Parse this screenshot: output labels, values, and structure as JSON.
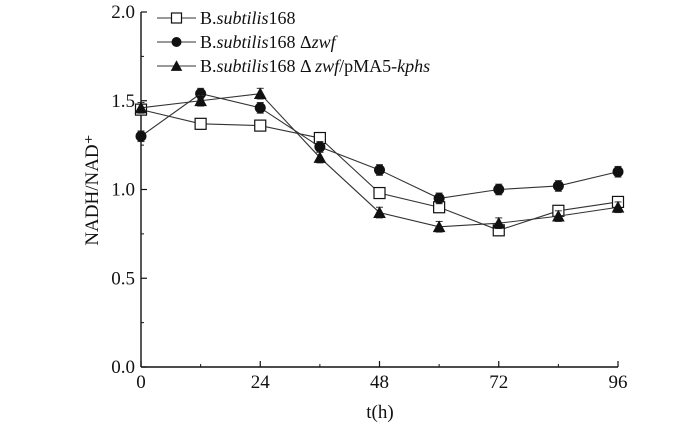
{
  "chart_data": {
    "type": "line",
    "xlabel": "t(h)",
    "ylabel": "NADH/NAD⁺",
    "xlim": [
      0,
      96
    ],
    "ylim": [
      0,
      2.0
    ],
    "x_ticks": [
      "0",
      "24",
      "48",
      "72",
      "96"
    ],
    "y_ticks": [
      "0.0",
      "0.5",
      "1.0",
      "1.5",
      "2.0"
    ],
    "grid": false,
    "legend_position": "top-left",
    "x": [
      0,
      12,
      24,
      36,
      48,
      60,
      72,
      84,
      96
    ],
    "series": [
      {
        "name": "B.subtilis168",
        "name_parts": [
          {
            "t": "B."
          },
          {
            "t": "subtilis",
            "i": true
          },
          {
            "t": "168"
          }
        ],
        "marker": "open-square",
        "values": [
          1.45,
          1.37,
          1.36,
          1.29,
          0.98,
          0.9,
          0.77,
          0.88,
          0.93
        ],
        "errors": [
          0.03,
          0.03,
          0.03,
          0.03,
          0.03,
          0.03,
          0.03,
          0.03,
          0.03
        ]
      },
      {
        "name": "B.subtilis168 Δzwf",
        "name_parts": [
          {
            "t": "B."
          },
          {
            "t": "subtilis",
            "i": true
          },
          {
            "t": "168  Δ"
          },
          {
            "t": "zwf",
            "i": true
          }
        ],
        "marker": "filled-circle",
        "values": [
          1.3,
          1.54,
          1.46,
          1.24,
          1.11,
          0.95,
          1.0,
          1.02,
          1.1
        ],
        "errors": [
          0.03,
          0.03,
          0.03,
          0.03,
          0.03,
          0.03,
          0.03,
          0.03,
          0.03
        ]
      },
      {
        "name": "B.subtilis168 Δzwf/pMA5-kphs",
        "name_parts": [
          {
            "t": "B."
          },
          {
            "t": "subtilis",
            "i": true
          },
          {
            "t": "168 Δ "
          },
          {
            "t": "zwf",
            "i": true
          },
          {
            "t": "/pMA5-"
          },
          {
            "t": "kphs",
            "i": true
          }
        ],
        "marker": "filled-triangle",
        "values": [
          1.46,
          1.5,
          1.54,
          1.18,
          0.87,
          0.79,
          0.81,
          0.85,
          0.9
        ],
        "errors": [
          0.03,
          0.03,
          0.03,
          0.03,
          0.03,
          0.03,
          0.03,
          0.03,
          0.03
        ]
      }
    ]
  }
}
